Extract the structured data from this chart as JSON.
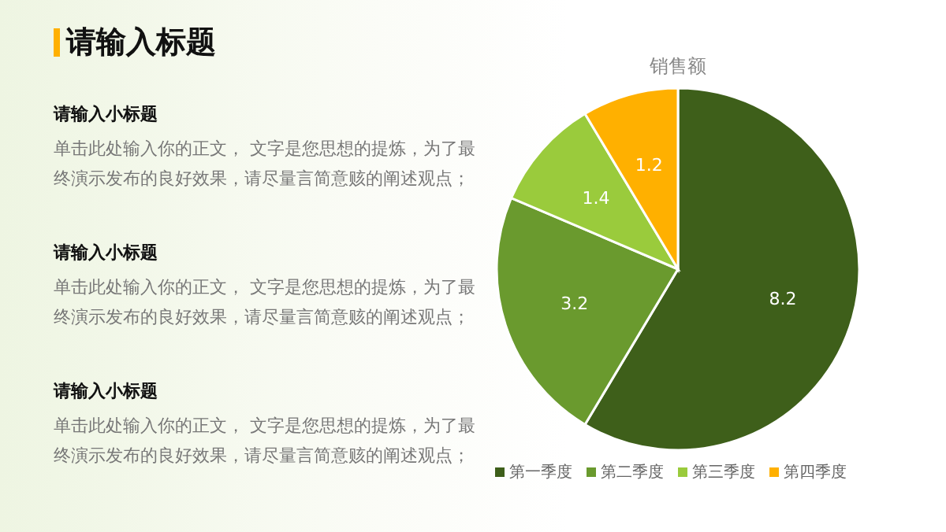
{
  "chart_data": [
    {
      "type": "other",
      "title": "请输入标题",
      "annotations": [
        "请输入小标题",
        "单击此处输入你的正文， 文字是您思想的提炼，为了最终演示发布的良好效果，请尽量言简意赅的阐述观点；",
        "请输入小标题",
        "单击此处输入你的正文， 文字是您思想的提炼，为了最终演示发布的良好效果，请尽量言简意赅的阐述观点；",
        "请输入小标题",
        "单击此处输入你的正文， 文字是您思想的提炼，为了最终演示发布的良好效果，请尽量言简意赅的阐述观点；"
      ]
    },
    {
      "type": "pie",
      "title": "销售额",
      "categories": [
        "第一季度",
        "第二季度",
        "第三季度",
        "第四季度"
      ],
      "values": [
        8.2,
        3.2,
        1.4,
        1.2
      ],
      "colors": [
        "#3e5f1a",
        "#6a9a2e",
        "#9acb3c",
        "#ffb000"
      ],
      "data_labels": true,
      "legend": "bottom"
    }
  ]
}
